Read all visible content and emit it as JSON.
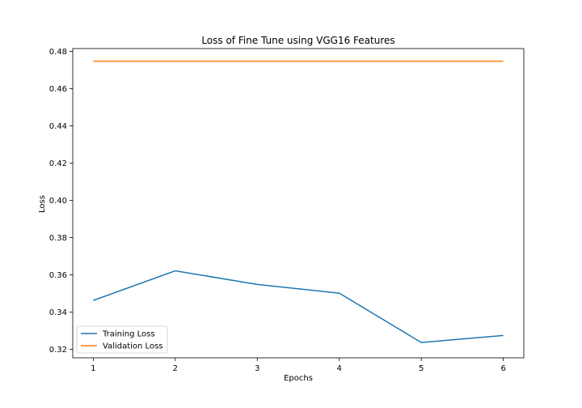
{
  "chart_data": {
    "type": "line",
    "title": "Loss of Fine Tune using VGG16 Features",
    "xlabel": "Epochs",
    "ylabel": "Loss",
    "x": [
      1,
      2,
      3,
      4,
      5,
      6
    ],
    "xlim": [
      0.75,
      6.25
    ],
    "ylim": [
      0.3155,
      0.4815
    ],
    "xticks": [
      1,
      2,
      3,
      4,
      5,
      6
    ],
    "yticks": [
      0.32,
      0.34,
      0.36,
      0.38,
      0.4,
      0.42,
      0.44,
      0.46,
      0.48
    ],
    "ytick_labels": [
      "0.32",
      "0.34",
      "0.36",
      "0.38",
      "0.40",
      "0.42",
      "0.44",
      "0.46",
      "0.48"
    ],
    "grid": false,
    "legend_position": "lower-left",
    "series": [
      {
        "name": "Training Loss",
        "color": "#1f77b4",
        "values": [
          0.3463,
          0.3622,
          0.3549,
          0.3502,
          0.3237,
          0.3275
        ]
      },
      {
        "name": "Validation Loss",
        "color": "#ff7f0e",
        "values": [
          0.4747,
          0.4747,
          0.4747,
          0.4747,
          0.4747,
          0.4747
        ]
      }
    ]
  }
}
